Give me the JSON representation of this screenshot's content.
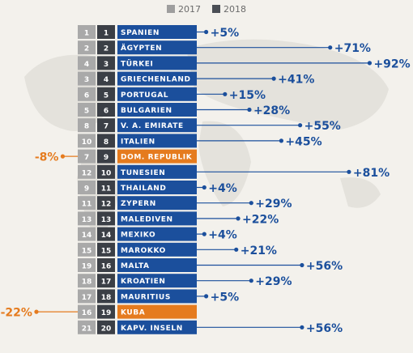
{
  "chart_data": {
    "type": "bar",
    "legend": [
      {
        "label": "2017",
        "color": "#9e9e9e"
      },
      {
        "label": "2018",
        "color": "#4a4e55"
      }
    ],
    "colors": {
      "positive": "#1b4f9c",
      "negative": "#e57b1e",
      "rank2017_bg": "#a9a9a9",
      "rank2018_bg": "#3b3f46"
    },
    "rows": [
      {
        "rank2017": "1",
        "rank2018": "1",
        "country": "SPANIEN",
        "change": 5,
        "label": "+5%"
      },
      {
        "rank2017": "2",
        "rank2018": "2",
        "country": "ÄGYPTEN",
        "change": 71,
        "label": "+71%"
      },
      {
        "rank2017": "4",
        "rank2018": "3",
        "country": "TÜRKEI",
        "change": 92,
        "label": "+92%"
      },
      {
        "rank2017": "3",
        "rank2018": "4",
        "country": "GRIECHENLAND",
        "change": 41,
        "label": "+41%"
      },
      {
        "rank2017": "6",
        "rank2018": "5",
        "country": "PORTUGAL",
        "change": 15,
        "label": "+15%"
      },
      {
        "rank2017": "5",
        "rank2018": "6",
        "country": "BULGARIEN",
        "change": 28,
        "label": "+28%"
      },
      {
        "rank2017": "8",
        "rank2018": "7",
        "country": "V. A. EMIRATE",
        "change": 55,
        "label": "+55%"
      },
      {
        "rank2017": "10",
        "rank2018": "8",
        "country": "ITALIEN",
        "change": 45,
        "label": "+45%"
      },
      {
        "rank2017": "7",
        "rank2018": "9",
        "country": "DOM. REPUBLIK",
        "change": -8,
        "label": "-8%"
      },
      {
        "rank2017": "12",
        "rank2018": "10",
        "country": "TUNESIEN",
        "change": 81,
        "label": "+81%"
      },
      {
        "rank2017": "9",
        "rank2018": "11",
        "country": "THAILAND",
        "change": 4,
        "label": "+4%"
      },
      {
        "rank2017": "11",
        "rank2018": "12",
        "country": "ZYPERN",
        "change": 29,
        "label": "+29%"
      },
      {
        "rank2017": "13",
        "rank2018": "13",
        "country": "MALEDIVEN",
        "change": 22,
        "label": "+22%"
      },
      {
        "rank2017": "14",
        "rank2018": "14",
        "country": "MEXIKO",
        "change": 4,
        "label": "+4%"
      },
      {
        "rank2017": "15",
        "rank2018": "15",
        "country": "MAROKKO",
        "change": 21,
        "label": "+21%"
      },
      {
        "rank2017": "19",
        "rank2018": "16",
        "country": "MALTA",
        "change": 56,
        "label": "+56%"
      },
      {
        "rank2017": "18",
        "rank2018": "17",
        "country": "KROATIEN",
        "change": 29,
        "label": "+29%"
      },
      {
        "rank2017": "17",
        "rank2018": "18",
        "country": "MAURITIUS",
        "change": 5,
        "label": "+5%"
      },
      {
        "rank2017": "16",
        "rank2018": "19",
        "country": "KUBA",
        "change": -22,
        "label": "-22%"
      },
      {
        "rank2017": "21",
        "rank2018": "20",
        "country": "KAPV. INSELN",
        "change": 56,
        "label": "+56%"
      }
    ]
  }
}
